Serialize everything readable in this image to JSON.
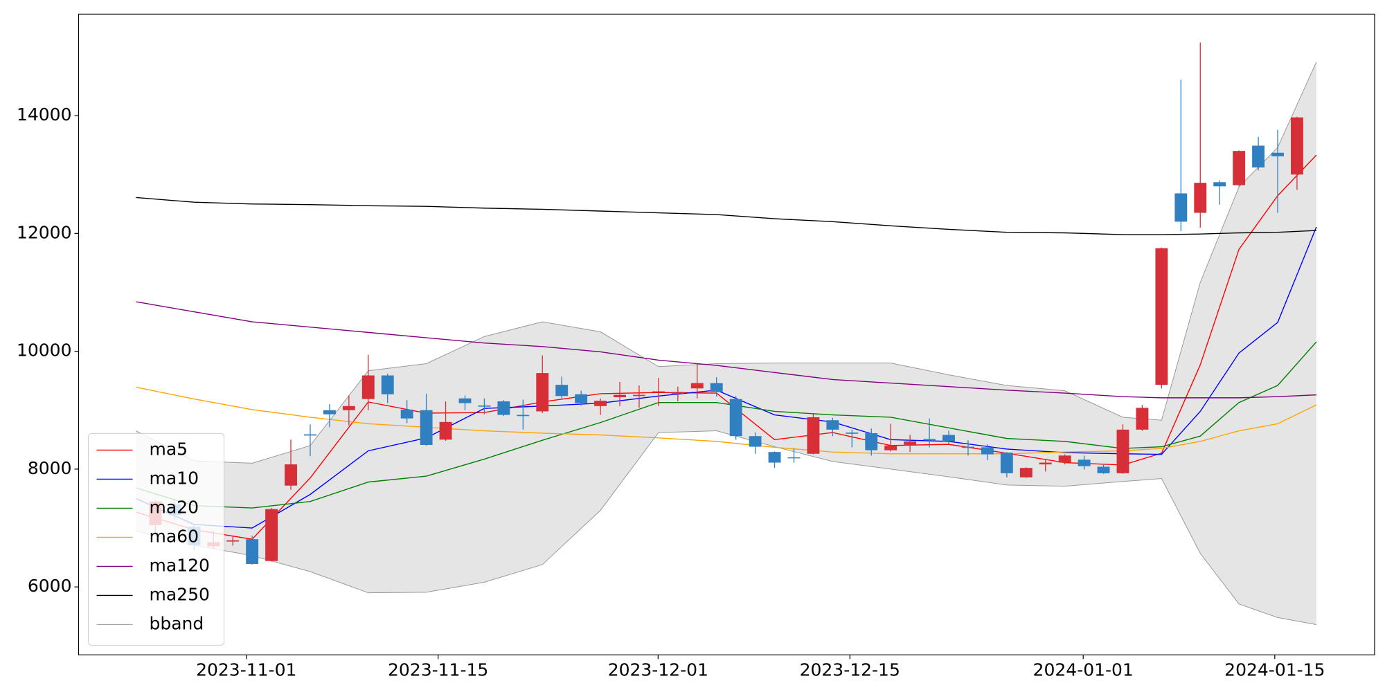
{
  "chart_data": {
    "type": "candlestick",
    "xlim": [
      -3.97,
      63.01
    ],
    "ylim": [
      4846,
      15723
    ],
    "yticks": [
      6000,
      8000,
      10000,
      12000,
      14000
    ],
    "xticks": [
      {
        "value": 4.7,
        "label": "2023-11-01"
      },
      {
        "value": 14.61,
        "label": "2023-11-15"
      },
      {
        "value": 25.98,
        "label": "2023-12-01"
      },
      {
        "value": 35.89,
        "label": "2023-12-15"
      },
      {
        "value": 47.95,
        "label": "2024-01-01"
      },
      {
        "value": 57.85,
        "label": "2024-01-15"
      }
    ],
    "legend": "lower left",
    "candles": {
      "up_color": "#d62f37",
      "down_color": "#2f7fc1",
      "x": [
        0,
        1,
        2,
        3,
        4,
        5,
        6,
        7,
        8,
        9,
        10,
        11,
        12,
        13,
        14,
        15,
        16,
        17,
        18,
        19,
        20,
        21,
        22,
        23,
        24,
        25,
        26,
        27,
        28,
        29,
        30,
        31,
        32,
        33,
        34,
        35,
        36,
        37,
        38,
        39,
        40,
        41,
        42,
        43,
        44,
        45,
        46,
        47,
        48,
        49,
        50,
        51,
        52,
        53,
        54,
        55,
        56,
        57,
        58,
        59
      ],
      "open": [
        7050,
        7400,
        7020,
        6690,
        6770,
        6810,
        6440,
        7720,
        8590,
        9000,
        9000,
        9190,
        9590,
        9010,
        9000,
        8500,
        9200,
        9080,
        9150,
        8920,
        8980,
        9430,
        9270,
        9070,
        9220,
        9240,
        9300,
        9280,
        9370,
        9460,
        9190,
        8560,
        8290,
        8200,
        8260,
        8830,
        8620,
        8610,
        8320,
        8400,
        8510,
        8580,
        8380,
        8370,
        8280,
        7860,
        8080,
        8110,
        8160,
        8040,
        7930,
        8670,
        9430,
        12680,
        12350,
        12870,
        12820,
        13490,
        13370,
        13000
      ],
      "high": [
        7480,
        7500,
        7050,
        6950,
        6860,
        6870,
        7340,
        8500,
        8760,
        9100,
        9250,
        9940,
        9620,
        9170,
        9280,
        9150,
        9250,
        9200,
        9170,
        9180,
        9930,
        9570,
        9330,
        9200,
        9480,
        9420,
        9550,
        9400,
        9790,
        9560,
        9240,
        8620,
        8300,
        8350,
        8950,
        8870,
        8670,
        8690,
        8770,
        8580,
        8860,
        8650,
        8490,
        8420,
        8290,
        8030,
        8170,
        8250,
        8230,
        8090,
        8760,
        9090,
        11760,
        14610,
        15240,
        12900,
        13410,
        13640,
        13760,
        13980
      ],
      "low": [
        6900,
        7130,
        6620,
        6640,
        6700,
        6380,
        6430,
        7650,
        8220,
        8710,
        8740,
        9000,
        9120,
        8780,
        8400,
        8480,
        9000,
        8930,
        8900,
        8670,
        8950,
        9200,
        9080,
        8920,
        9070,
        9040,
        9070,
        9150,
        9200,
        9230,
        8500,
        8260,
        8020,
        8110,
        8250,
        8560,
        8370,
        8230,
        8300,
        8290,
        8370,
        8420,
        8230,
        8150,
        7860,
        7850,
        7960,
        8080,
        7990,
        7920,
        7920,
        8650,
        9370,
        12040,
        12100,
        12490,
        12800,
        13070,
        12350,
        12740
      ],
      "close": [
        7450,
        7220,
        6710,
        6760,
        6790,
        6390,
        7320,
        8080,
        8570,
        8930,
        9070,
        9590,
        9270,
        8860,
        8410,
        8800,
        9120,
        9060,
        8920,
        8900,
        9630,
        9240,
        9120,
        9160,
        9260,
        9260,
        9320,
        9310,
        9460,
        9310,
        8560,
        8380,
        8110,
        8190,
        8880,
        8670,
        8600,
        8320,
        8400,
        8470,
        8490,
        8470,
        8360,
        8250,
        7930,
        8020,
        8110,
        8230,
        8050,
        7930,
        8670,
        9040,
        11750,
        12200,
        12860,
        12800,
        13400,
        13120,
        13310,
        13970
      ]
    },
    "series": [
      {
        "name": "ma5",
        "color": "#ff0000",
        "x": [
          -1,
          2,
          5,
          8,
          11,
          14,
          17,
          20,
          23,
          26,
          29,
          32,
          35,
          38,
          41,
          44,
          47,
          50,
          52,
          54,
          56,
          58,
          60
        ],
        "values": [
          7270,
          6970,
          6810,
          7850,
          9140,
          8950,
          8960,
          9140,
          9280,
          9300,
          9290,
          8500,
          8620,
          8400,
          8420,
          8270,
          8110,
          8070,
          8270,
          9770,
          11730,
          12640,
          13330
        ]
      },
      {
        "name": "ma10",
        "color": "#0000ff",
        "x": [
          -1,
          2,
          5,
          8,
          11,
          14,
          17,
          20,
          23,
          26,
          29,
          32,
          35,
          38,
          41,
          44,
          47,
          50,
          52,
          54,
          56,
          58,
          60
        ],
        "values": [
          7500,
          7060,
          7000,
          7570,
          8310,
          8530,
          9030,
          9070,
          9120,
          9240,
          9340,
          8920,
          8800,
          8500,
          8470,
          8340,
          8280,
          8260,
          8250,
          8980,
          9970,
          10490,
          12110
        ]
      },
      {
        "name": "ma20",
        "color": "#008000",
        "x": [
          -1,
          2,
          5,
          8,
          11,
          14,
          17,
          20,
          23,
          26,
          29,
          32,
          35,
          38,
          41,
          44,
          47,
          50,
          52,
          54,
          56,
          58,
          60
        ],
        "values": [
          7680,
          7380,
          7340,
          7450,
          7780,
          7880,
          8170,
          8490,
          8790,
          9130,
          9130,
          8980,
          8920,
          8880,
          8700,
          8520,
          8470,
          8350,
          8380,
          8560,
          9130,
          9420,
          10160
        ]
      },
      {
        "name": "ma60",
        "color": "#ffa500",
        "x": [
          -1,
          2,
          5,
          8,
          11,
          14,
          17,
          20,
          23,
          26,
          29,
          32,
          35,
          38,
          41,
          44,
          47,
          50,
          52,
          54,
          56,
          58,
          60
        ],
        "values": [
          9390,
          9190,
          9010,
          8880,
          8770,
          8710,
          8650,
          8610,
          8580,
          8530,
          8470,
          8370,
          8290,
          8260,
          8260,
          8260,
          8290,
          8310,
          8350,
          8470,
          8650,
          8770,
          9090
        ]
      },
      {
        "name": "ma120",
        "color": "#800080",
        "x": [
          -1,
          2,
          5,
          8,
          11,
          14,
          17,
          20,
          23,
          26,
          29,
          32,
          35,
          38,
          41,
          44,
          47,
          50,
          52,
          54,
          56,
          58,
          60
        ],
        "values": [
          10840,
          10670,
          10500,
          10410,
          10320,
          10230,
          10140,
          10080,
          9990,
          9850,
          9760,
          9640,
          9520,
          9460,
          9400,
          9340,
          9290,
          9230,
          9210,
          9210,
          9210,
          9230,
          9260
        ]
      },
      {
        "name": "ma250",
        "color": "#000000",
        "x": [
          -1,
          2,
          5,
          8,
          11,
          14,
          17,
          20,
          23,
          26,
          29,
          32,
          35,
          38,
          41,
          44,
          47,
          50,
          52,
          54,
          56,
          58,
          60
        ],
        "values": [
          12610,
          12530,
          12500,
          12490,
          12470,
          12460,
          12430,
          12410,
          12380,
          12350,
          12320,
          12250,
          12200,
          12130,
          12070,
          12020,
          12010,
          11980,
          11980,
          11990,
          12010,
          12020,
          12050
        ]
      }
    ],
    "band": {
      "name": "bband",
      "color": "#999999",
      "fill": "#e5e5e5",
      "x": [
        -1,
        2,
        5,
        8,
        11,
        14,
        17,
        20,
        23,
        26,
        29,
        32,
        35,
        38,
        41,
        44,
        47,
        50,
        52,
        54,
        56,
        58,
        60
      ],
      "upper": [
        8650,
        8140,
        8100,
        8400,
        9670,
        9790,
        10250,
        10500,
        10330,
        9740,
        9790,
        9800,
        9800,
        9800,
        9600,
        9420,
        9330,
        8880,
        8830,
        11170,
        12790,
        13460,
        14910
      ],
      "lower": [
        6950,
        6710,
        6530,
        6260,
        5900,
        5910,
        6080,
        6380,
        7300,
        8620,
        8650,
        8380,
        8130,
        8000,
        7870,
        7730,
        7710,
        7790,
        7840,
        6570,
        5710,
        5480,
        5360
      ]
    }
  }
}
